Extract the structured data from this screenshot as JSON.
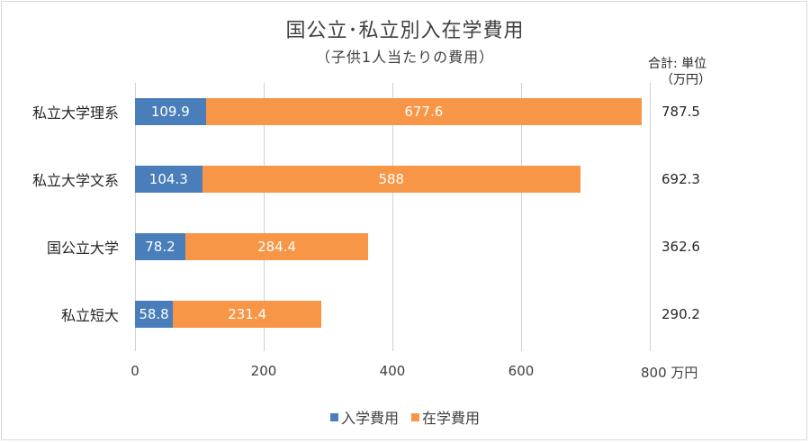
{
  "chart_data": {
    "type": "bar",
    "orientation": "horizontal",
    "stacked": true,
    "title": "国公立･私立別入在学費用",
    "subtitle": "（子供1人当たりの費用）",
    "unit_note": [
      "合計: 単位",
      "（万円）"
    ],
    "categories": [
      "私立大学理系",
      "私立大学文系",
      "国公立大学",
      "私立短大"
    ],
    "series": [
      {
        "name": "入学費用",
        "color": "#4a7ebb",
        "values": [
          109.9,
          104.3,
          78.2,
          58.8
        ]
      },
      {
        "name": "在学費用",
        "color": "#f79646",
        "values": [
          677.6,
          588,
          284.4,
          231.4
        ]
      }
    ],
    "totals": [
      787.5,
      692.3,
      362.6,
      290.2
    ],
    "xlabel": "万円",
    "ylabel": "",
    "xlim": [
      0,
      800
    ],
    "xticks": [
      0,
      200,
      400,
      600,
      800
    ],
    "grid": true,
    "legend_position": "bottom"
  },
  "labels": {
    "title": "国公立･私立別入在学費用",
    "subtitle": "（子供1人当たりの費用）",
    "unit_line1": "合計: 単位",
    "unit_line2": "（万円）",
    "categories": [
      "私立大学理系",
      "私立大学文系",
      "国公立大学",
      "私立短大"
    ],
    "entry_values": [
      "109.9",
      "104.3",
      "78.2",
      "58.8"
    ],
    "tuition_values": [
      "677.6",
      "588",
      "284.4",
      "231.4"
    ],
    "totals": [
      "787.5",
      "692.3",
      "362.6",
      "290.2"
    ],
    "ticks": [
      "0",
      "200",
      "400",
      "600",
      "800 万円"
    ],
    "legend": [
      "入学費用",
      "在学費用"
    ]
  }
}
